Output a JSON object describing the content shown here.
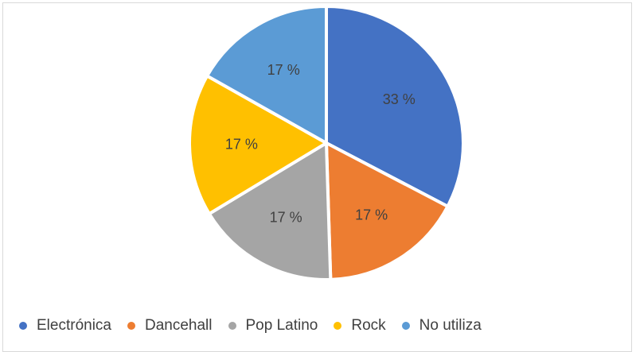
{
  "chart_data": {
    "type": "pie",
    "title": "",
    "categories": [
      "Electrónica",
      "Dancehall",
      "Pop Latino",
      "Rock",
      "No utiliza"
    ],
    "values": [
      33,
      17,
      17,
      17,
      17
    ],
    "labels": [
      "33 %",
      "17 %",
      "17 %",
      "17 %",
      "17 %"
    ],
    "colors": [
      "#4472C4",
      "#ED7D31",
      "#A5A5A5",
      "#FFC000",
      "#5B9BD5"
    ],
    "legend_position": "bottom"
  }
}
